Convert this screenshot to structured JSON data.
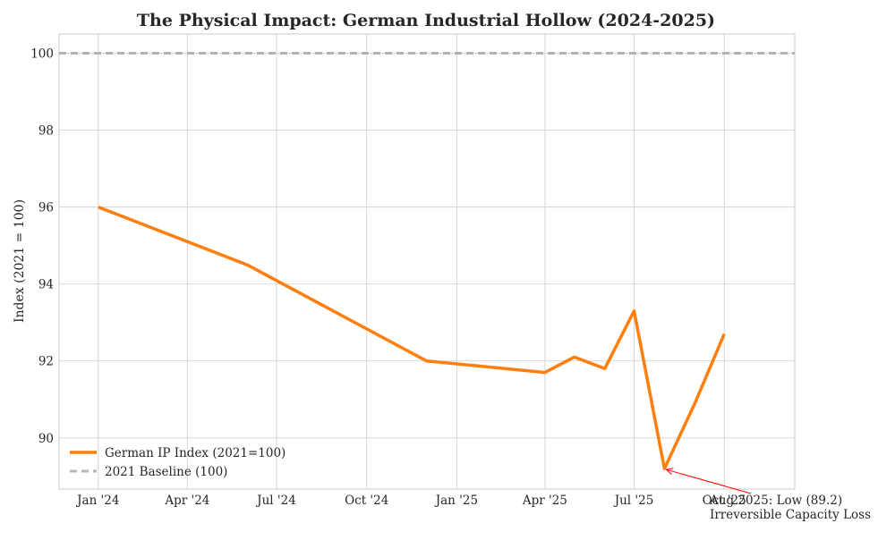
{
  "chart_data": {
    "type": "line",
    "title": "The Physical Impact: German Industrial Hollow (2024-2025)",
    "xlabel": "",
    "ylabel": "Index (2021 = 100)",
    "x_ticks": [
      "Jan '24",
      "Apr '24",
      "Jul '24",
      "Oct '24",
      "Jan '25",
      "Apr '25",
      "Jul '25",
      "Oct '25"
    ],
    "y_ticks": [
      90,
      92,
      94,
      96,
      98,
      100
    ],
    "ylim": [
      88.67,
      100.5
    ],
    "xlim": [
      "2023-11-22",
      "2025-12-12"
    ],
    "grid": true,
    "legend_position": "lower-left",
    "series": [
      {
        "name": "German IP Index (2021=100)",
        "color": "#ff7f0e",
        "points": [
          {
            "x": "2024-01-01",
            "y": 96.0
          },
          {
            "x": "2024-06-01",
            "y": 94.5
          },
          {
            "x": "2024-12-01",
            "y": 92.0
          },
          {
            "x": "2025-04-01",
            "y": 91.7
          },
          {
            "x": "2025-05-01",
            "y": 92.1
          },
          {
            "x": "2025-06-01",
            "y": 91.8
          },
          {
            "x": "2025-07-01",
            "y": 93.3
          },
          {
            "x": "2025-08-01",
            "y": 89.2
          },
          {
            "x": "2025-09-01",
            "y": 90.9
          },
          {
            "x": "2025-10-01",
            "y": 92.7
          }
        ]
      },
      {
        "name": "2021 Baseline (100)",
        "color": "#aaaaaa",
        "style": "dashed",
        "constant": 100
      }
    ],
    "annotation": {
      "text_line1": "Aug 2025: Low (89.2)",
      "text_line2": "Irreversible Capacity Loss",
      "target": {
        "x": "2025-08-01",
        "y": 89.2
      },
      "color": "#ff0000"
    }
  }
}
